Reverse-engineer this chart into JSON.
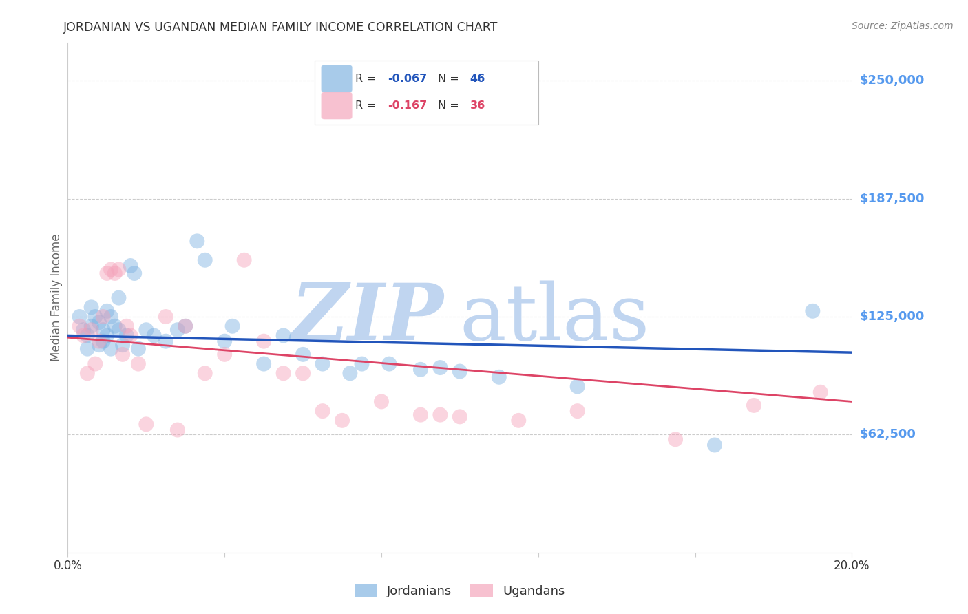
{
  "title": "JORDANIAN VS UGANDAN MEDIAN FAMILY INCOME CORRELATION CHART",
  "source": "Source: ZipAtlas.com",
  "ylabel": "Median Family Income",
  "watermark_zip": "ZIP",
  "watermark_atlas": "atlas",
  "xlim": [
    0.0,
    0.2
  ],
  "ylim": [
    0,
    270000
  ],
  "ytick_vals": [
    62500,
    125000,
    187500,
    250000
  ],
  "ytick_labels": [
    "$62,500",
    "$125,000",
    "$187,500",
    "$250,000"
  ],
  "xtick_vals": [
    0.0,
    0.04,
    0.08,
    0.12,
    0.16,
    0.2
  ],
  "xtick_labels": [
    "0.0%",
    "",
    "",
    "",
    "",
    "20.0%"
  ],
  "blue_R": -0.067,
  "blue_N": 46,
  "pink_R": -0.167,
  "pink_N": 36,
  "blue_color": "#7ab0e0",
  "pink_color": "#f4a0b8",
  "blue_line_color": "#2255bb",
  "pink_line_color": "#dd4466",
  "blue_scatter_x": [
    0.003,
    0.004,
    0.005,
    0.005,
    0.006,
    0.006,
    0.007,
    0.008,
    0.008,
    0.009,
    0.009,
    0.01,
    0.01,
    0.011,
    0.011,
    0.012,
    0.013,
    0.013,
    0.014,
    0.015,
    0.016,
    0.017,
    0.018,
    0.02,
    0.022,
    0.025,
    0.028,
    0.03,
    0.033,
    0.035,
    0.04,
    0.042,
    0.05,
    0.055,
    0.06,
    0.065,
    0.072,
    0.075,
    0.082,
    0.09,
    0.095,
    0.1,
    0.11,
    0.13,
    0.165,
    0.19
  ],
  "blue_scatter_y": [
    125000,
    118000,
    115000,
    108000,
    130000,
    120000,
    125000,
    122000,
    110000,
    118000,
    112000,
    128000,
    115000,
    125000,
    108000,
    120000,
    135000,
    118000,
    110000,
    115000,
    152000,
    148000,
    108000,
    118000,
    115000,
    112000,
    118000,
    120000,
    165000,
    155000,
    112000,
    120000,
    100000,
    115000,
    105000,
    100000,
    95000,
    100000,
    100000,
    97000,
    98000,
    96000,
    93000,
    88000,
    57000,
    128000
  ],
  "pink_scatter_x": [
    0.003,
    0.004,
    0.005,
    0.006,
    0.007,
    0.008,
    0.009,
    0.01,
    0.011,
    0.012,
    0.013,
    0.014,
    0.015,
    0.016,
    0.018,
    0.02,
    0.025,
    0.028,
    0.03,
    0.035,
    0.04,
    0.045,
    0.05,
    0.055,
    0.06,
    0.065,
    0.07,
    0.08,
    0.09,
    0.095,
    0.1,
    0.115,
    0.13,
    0.155,
    0.175,
    0.192
  ],
  "pink_scatter_y": [
    120000,
    115000,
    95000,
    118000,
    100000,
    112000,
    125000,
    148000,
    150000,
    148000,
    150000,
    105000,
    120000,
    115000,
    100000,
    68000,
    125000,
    65000,
    120000,
    95000,
    105000,
    155000,
    112000,
    95000,
    95000,
    75000,
    70000,
    80000,
    73000,
    73000,
    72000,
    70000,
    75000,
    60000,
    78000,
    85000
  ],
  "blue_trend_x": [
    0.0,
    0.2
  ],
  "blue_trend_y": [
    115000,
    106000
  ],
  "pink_trend_x": [
    0.0,
    0.2
  ],
  "pink_trend_y": [
    114000,
    80000
  ],
  "grid_color": "#cccccc",
  "bg_color": "#ffffff",
  "title_color": "#333333",
  "axis_label_color": "#666666",
  "ytick_color": "#5599ee",
  "xtick_color": "#333333",
  "source_color": "#888888",
  "watermark_color_zip": "#c0d5f0",
  "watermark_color_atlas": "#c0d5f0",
  "legend_blue_label": "Jordanians",
  "legend_pink_label": "Ugandans",
  "legend_r_color": "#333333",
  "legend_n_val_color_blue": "#2255bb",
  "legend_n_val_color_pink": "#dd4466"
}
